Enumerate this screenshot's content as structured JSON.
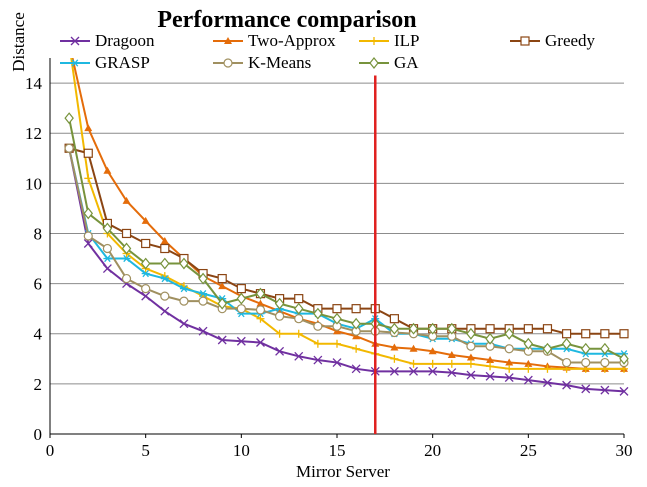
{
  "chart_data": {
    "type": "line",
    "title": "Performance comparison",
    "xlabel": "Mirror Server",
    "ylabel": "Distance",
    "xlim": [
      0,
      30
    ],
    "ylim": [
      0,
      15
    ],
    "x_ticks": [
      0,
      5,
      10,
      15,
      20,
      25,
      30
    ],
    "y_ticks": [
      0,
      2,
      4,
      6,
      8,
      10,
      12,
      14
    ],
    "grid": "horizontal",
    "legend_position": "top",
    "vertical_marker": {
      "x": 17,
      "color": "#e0201f"
    },
    "x": [
      1,
      2,
      3,
      4,
      5,
      6,
      7,
      8,
      9,
      10,
      11,
      12,
      13,
      14,
      15,
      16,
      17,
      18,
      19,
      20,
      21,
      22,
      23,
      24,
      25,
      26,
      27,
      28,
      29,
      30
    ],
    "series": [
      {
        "name": "Dragoon",
        "color": "#7030a0",
        "marker": "x",
        "values": [
          11.4,
          7.6,
          6.6,
          6.0,
          5.5,
          4.9,
          4.4,
          4.1,
          3.75,
          3.7,
          3.65,
          3.3,
          3.1,
          2.95,
          2.85,
          2.6,
          2.5,
          2.5,
          2.5,
          2.5,
          2.45,
          2.35,
          2.3,
          2.25,
          2.15,
          2.05,
          1.95,
          1.8,
          1.75,
          1.7
        ]
      },
      {
        "name": "Two-Approx",
        "color": "#e46c0a",
        "marker": "triangle",
        "values": [
          15.6,
          12.2,
          10.5,
          9.3,
          8.5,
          7.7,
          7.0,
          6.3,
          5.9,
          5.5,
          5.2,
          4.9,
          4.6,
          4.4,
          4.1,
          3.9,
          3.6,
          3.45,
          3.4,
          3.3,
          3.15,
          3.05,
          2.95,
          2.85,
          2.8,
          2.7,
          2.65,
          2.6,
          2.6,
          2.6
        ]
      },
      {
        "name": "ILP",
        "color": "#f2b800",
        "marker": "plus",
        "values": [
          15.6,
          10.2,
          8.0,
          7.2,
          6.6,
          6.3,
          5.9,
          5.5,
          5.1,
          5.0,
          4.6,
          4.0,
          4.0,
          3.6,
          3.6,
          3.4,
          3.2,
          3.0,
          2.8,
          2.8,
          2.8,
          2.8,
          2.7,
          2.6,
          2.6,
          2.6,
          2.6,
          2.6,
          2.6,
          2.6
        ]
      },
      {
        "name": "Greedy",
        "color": "#8b4513",
        "marker": "square",
        "values": [
          11.4,
          11.2,
          8.4,
          8.0,
          7.6,
          7.4,
          7.0,
          6.4,
          6.2,
          5.8,
          5.6,
          5.4,
          5.4,
          5.0,
          5.0,
          5.0,
          5.0,
          4.6,
          4.2,
          4.2,
          4.2,
          4.2,
          4.2,
          4.2,
          4.2,
          4.2,
          4.0,
          4.0,
          4.0,
          4.0
        ]
      },
      {
        "name": "GRASP",
        "color": "#1fb8e0",
        "marker": "asterisk",
        "values": [
          11.4,
          8.0,
          7.0,
          7.0,
          6.4,
          6.2,
          5.8,
          5.6,
          5.4,
          4.8,
          4.8,
          5.0,
          4.8,
          4.8,
          4.4,
          4.2,
          4.6,
          4.0,
          4.0,
          3.8,
          3.8,
          3.6,
          3.6,
          3.4,
          3.4,
          3.4,
          3.4,
          3.2,
          3.2,
          3.2
        ]
      },
      {
        "name": "K-Means",
        "color": "#a09060",
        "marker": "circle",
        "values": [
          11.4,
          7.9,
          7.4,
          6.2,
          5.8,
          5.5,
          5.3,
          5.3,
          5.0,
          5.0,
          4.95,
          4.7,
          4.6,
          4.3,
          4.3,
          4.1,
          4.1,
          4.05,
          4.0,
          3.9,
          3.9,
          3.5,
          3.5,
          3.4,
          3.3,
          3.3,
          2.85,
          2.85,
          2.85,
          2.85
        ]
      },
      {
        "name": "GA",
        "color": "#77933c",
        "marker": "diamond",
        "values": [
          12.6,
          8.8,
          8.2,
          7.4,
          6.8,
          6.8,
          6.8,
          6.2,
          5.2,
          5.4,
          5.6,
          5.2,
          5.0,
          4.8,
          4.6,
          4.4,
          4.4,
          4.2,
          4.2,
          4.2,
          4.2,
          4.0,
          3.8,
          4.0,
          3.6,
          3.4,
          3.6,
          3.4,
          3.4,
          3.0
        ]
      }
    ]
  }
}
